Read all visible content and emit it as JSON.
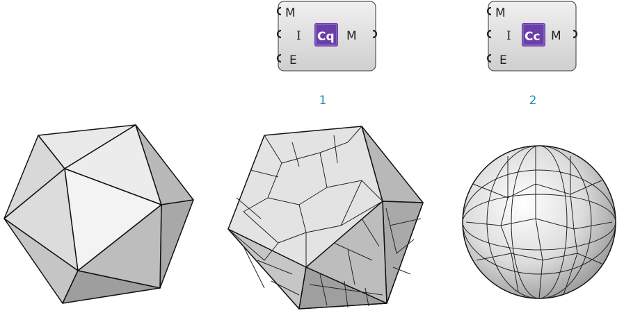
{
  "components": [
    {
      "inputs": [
        "M",
        "I",
        "E"
      ],
      "output": "M",
      "icon_label": "Cq",
      "caption": "1"
    },
    {
      "inputs": [
        "M",
        "I",
        "E"
      ],
      "output": "M",
      "icon_label": "Cc",
      "caption": "2"
    }
  ],
  "colors": {
    "caption": "#1a8fb8",
    "icon": "#6b3fa8",
    "node_fill": "#d9d9d9",
    "node_stroke": "#555555"
  }
}
